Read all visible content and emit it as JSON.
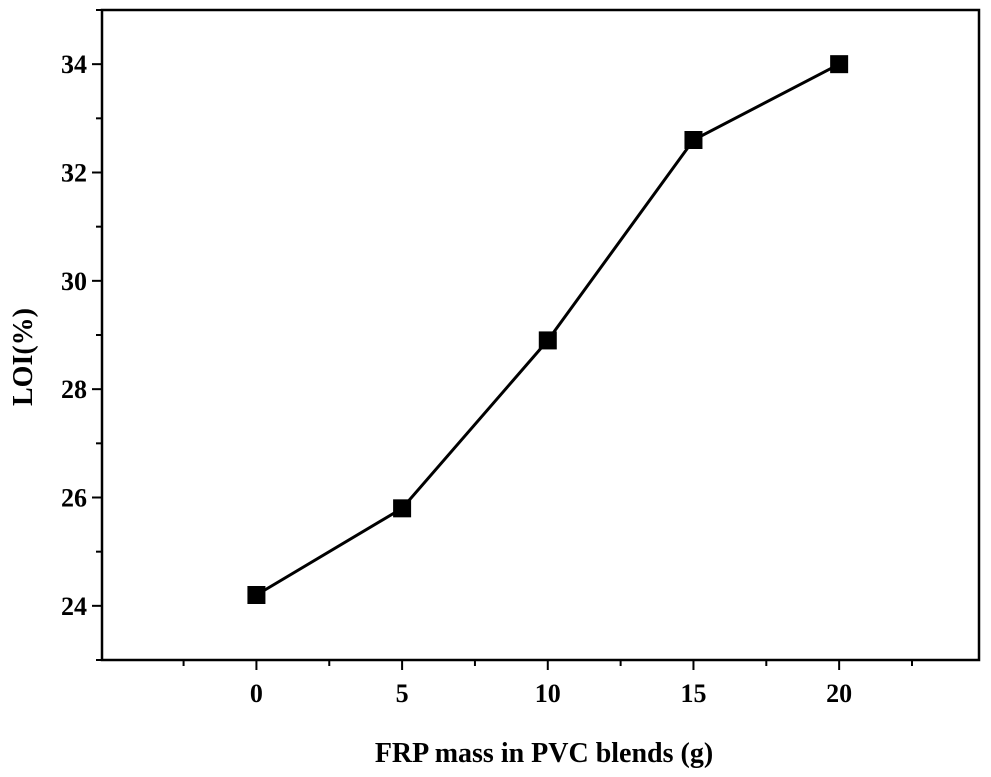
{
  "chart_data": {
    "type": "line",
    "title": "",
    "xlabel": "FRP mass in PVC blends (g)",
    "ylabel": "LOI(%)",
    "xlim": [
      -5.3,
      24.8
    ],
    "ylim": [
      23.0,
      35.0
    ],
    "x_ticks": [
      0,
      5,
      10,
      15,
      20
    ],
    "x_tick_labels": [
      "0",
      "5",
      "10",
      "15",
      "20"
    ],
    "x_minor_ticks": [
      2.5,
      7.5,
      12.5,
      17.5,
      -2.5,
      22.5
    ],
    "y_ticks": [
      24,
      26,
      28,
      30,
      32,
      34
    ],
    "y_tick_labels": [
      "24",
      "26",
      "28",
      "30",
      "32",
      "34"
    ],
    "y_minor_ticks": [
      23,
      25,
      27,
      29,
      31,
      33,
      35
    ],
    "grid": false,
    "legend": "none",
    "marker": "square",
    "color": "#000000",
    "series": [
      {
        "name": "LOI",
        "x": [
          0,
          5,
          10,
          15,
          20
        ],
        "y": [
          24.2,
          25.8,
          28.9,
          32.6,
          34.0
        ]
      }
    ]
  }
}
